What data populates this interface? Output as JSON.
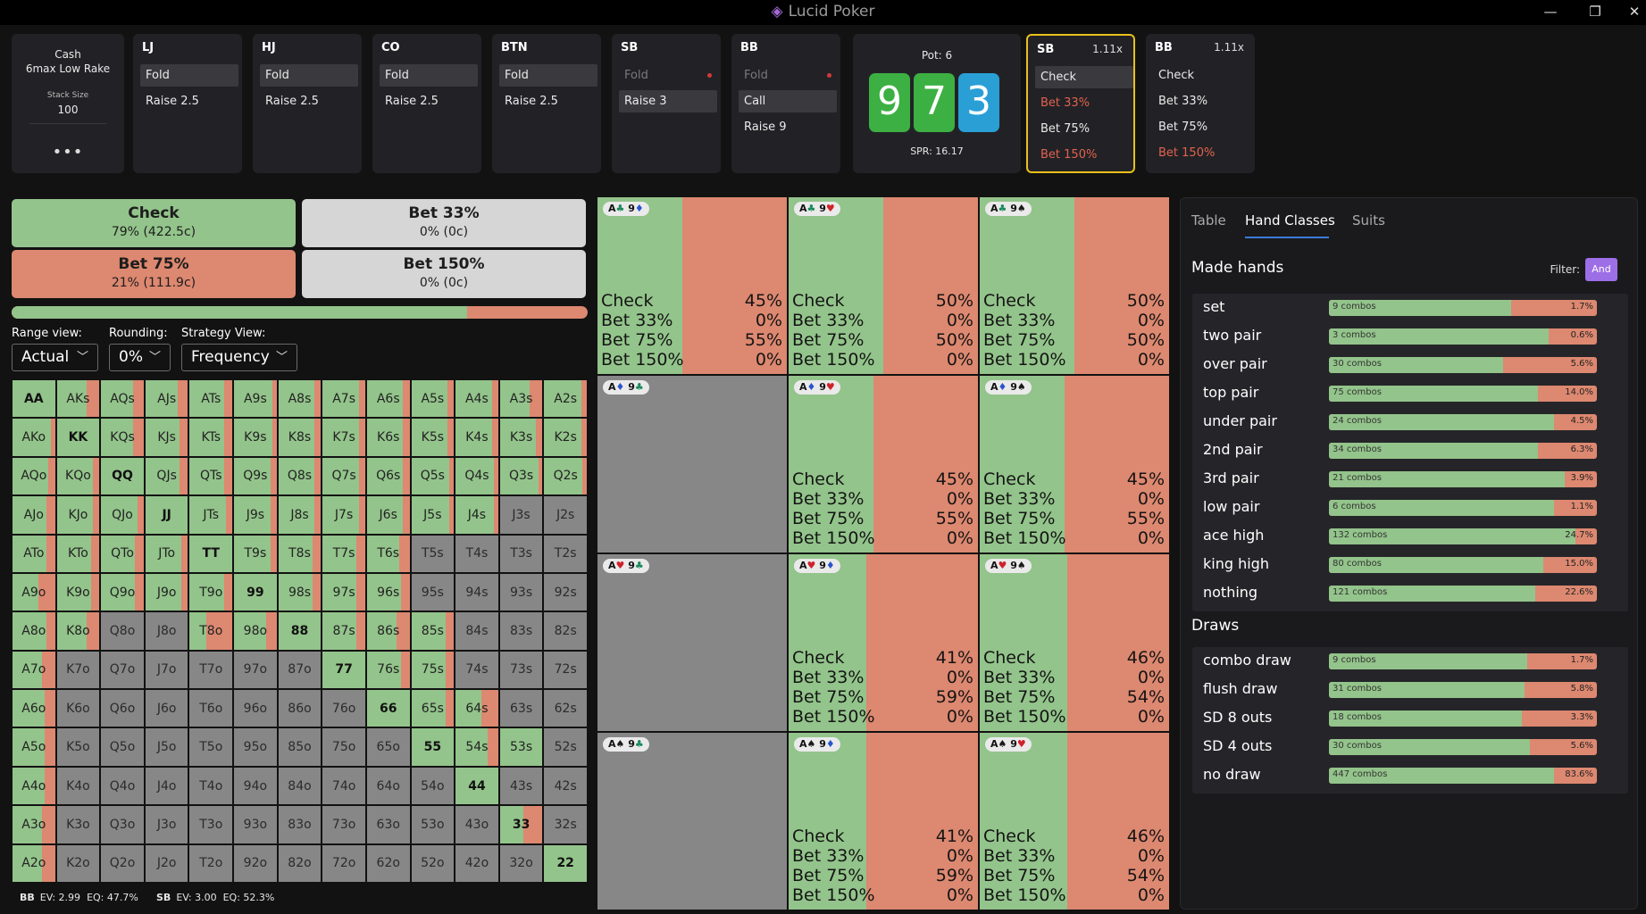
{
  "app": {
    "title": "Lucid Poker"
  },
  "game_info": {
    "line1": "Cash",
    "line2": "6max Low Rake",
    "stack_label": "Stack Size",
    "stack_value": "100",
    "more": "•••"
  },
  "positions": [
    {
      "name": "LJ",
      "actions": [
        {
          "label": "Fold",
          "selected": true
        },
        {
          "label": "Raise 2.5"
        }
      ]
    },
    {
      "name": "HJ",
      "actions": [
        {
          "label": "Fold",
          "selected": true
        },
        {
          "label": "Raise 2.5"
        }
      ]
    },
    {
      "name": "CO",
      "actions": [
        {
          "label": "Fold",
          "selected": true
        },
        {
          "label": "Raise 2.5"
        }
      ]
    },
    {
      "name": "BTN",
      "actions": [
        {
          "label": "Fold",
          "selected": true
        },
        {
          "label": "Raise 2.5"
        }
      ]
    },
    {
      "name": "SB",
      "actions": [
        {
          "label": "Fold",
          "dim": true,
          "dot": true
        },
        {
          "label": "Raise 3",
          "selected": true
        }
      ]
    },
    {
      "name": "BB",
      "actions": [
        {
          "label": "Fold",
          "dim": true,
          "dot": true
        },
        {
          "label": "Call",
          "selected": true
        },
        {
          "label": "Raise 9"
        }
      ]
    }
  ],
  "pot": {
    "label": "Pot: 6",
    "spr": "SPR: 16.17",
    "board": [
      {
        "rank": "9",
        "color": "#3cb043"
      },
      {
        "rank": "7",
        "color": "#3cb043"
      },
      {
        "rank": "3",
        "color": "#2a9fd6"
      }
    ]
  },
  "sb_card": {
    "name": "SB",
    "mult": "1.11x",
    "actions": [
      {
        "label": "Check",
        "selected": true
      },
      {
        "label": "Bet 33%",
        "red": true
      },
      {
        "label": "Bet 75%"
      },
      {
        "label": "Bet 150%",
        "red": true
      }
    ]
  },
  "bb_card": {
    "name": "BB",
    "mult": "1.11x",
    "actions": [
      {
        "label": "Check"
      },
      {
        "label": "Bet 33%"
      },
      {
        "label": "Bet 75%"
      },
      {
        "label": "Bet 150%",
        "red": true
      }
    ]
  },
  "strategy_actions": [
    {
      "name": "Check",
      "stat": "79% (422.5c)",
      "color": "#93c48b"
    },
    {
      "name": "Bet 33%",
      "stat": "0% (0c)",
      "color": "#d6d6d6"
    },
    {
      "name": "Bet 75%",
      "stat": "21% (111.9c)",
      "color": "#dd8870"
    },
    {
      "name": "Bet 150%",
      "stat": "0% (0c)",
      "color": "#d6d6d6"
    }
  ],
  "freq_bar": {
    "check_fraction": 0.79
  },
  "controls": {
    "range_view_label": "Range view:",
    "range_view_value": "Actual",
    "rounding_label": "Rounding:",
    "rounding_value": "0%",
    "strategy_view_label": "Strategy View:",
    "strategy_view_value": "Frequency"
  },
  "hand_grid": {
    "rows": [
      [
        "AA",
        "AKs",
        "AQs",
        "AJs",
        "ATs",
        "A9s",
        "A8s",
        "A7s",
        "A6s",
        "A5s",
        "A4s",
        "A3s",
        "A2s"
      ],
      [
        "AKo",
        "KK",
        "KQs",
        "KJs",
        "KTs",
        "K9s",
        "K8s",
        "K7s",
        "K6s",
        "K5s",
        "K4s",
        "K3s",
        "K2s"
      ],
      [
        "AQo",
        "KQo",
        "QQ",
        "QJs",
        "QTs",
        "Q9s",
        "Q8s",
        "Q7s",
        "Q6s",
        "Q5s",
        "Q4s",
        "Q3s",
        "Q2s"
      ],
      [
        "AJo",
        "KJo",
        "QJo",
        "JJ",
        "JTs",
        "J9s",
        "J8s",
        "J7s",
        "J6s",
        "J5s",
        "J4s",
        "J3s",
        "J2s"
      ],
      [
        "ATo",
        "KTo",
        "QTo",
        "JTo",
        "TT",
        "T9s",
        "T8s",
        "T7s",
        "T6s",
        "T5s",
        "T4s",
        "T3s",
        "T2s"
      ],
      [
        "A9o",
        "K9o",
        "Q9o",
        "J9o",
        "T9o",
        "99",
        "98s",
        "97s",
        "96s",
        "95s",
        "94s",
        "93s",
        "92s"
      ],
      [
        "A8o",
        "K8o",
        "Q8o",
        "J8o",
        "T8o",
        "98o",
        "88",
        "87s",
        "86s",
        "85s",
        "84s",
        "83s",
        "82s"
      ],
      [
        "A7o",
        "K7o",
        "Q7o",
        "J7o",
        "T7o",
        "97o",
        "87o",
        "77",
        "76s",
        "75s",
        "74s",
        "73s",
        "72s"
      ],
      [
        "A6o",
        "K6o",
        "Q6o",
        "J6o",
        "T6o",
        "96o",
        "86o",
        "76o",
        "66",
        "65s",
        "64s",
        "63s",
        "62s"
      ],
      [
        "A5o",
        "K5o",
        "Q5o",
        "J5o",
        "T5o",
        "95o",
        "85o",
        "75o",
        "65o",
        "55",
        "54s",
        "53s",
        "52s"
      ],
      [
        "A4o",
        "K4o",
        "Q4o",
        "J4o",
        "T4o",
        "94o",
        "84o",
        "74o",
        "64o",
        "54o",
        "44",
        "43s",
        "42s"
      ],
      [
        "A3o",
        "K3o",
        "Q3o",
        "J3o",
        "T3o",
        "93o",
        "83o",
        "73o",
        "63o",
        "53o",
        "43o",
        "33",
        "32s"
      ],
      [
        "A2o",
        "K2o",
        "Q2o",
        "J2o",
        "T2o",
        "92o",
        "82o",
        "72o",
        "62o",
        "52o",
        "42o",
        "32o",
        "22"
      ]
    ],
    "freq": [
      [
        1,
        0.7,
        0.75,
        0.75,
        0.8,
        0.9,
        0.85,
        0.85,
        0.85,
        0.85,
        0.85,
        0.7,
        0.88
      ],
      [
        0.9,
        1,
        0.75,
        0.8,
        0.8,
        0.9,
        0.85,
        0.85,
        0.85,
        0.85,
        0.85,
        0.85,
        0.88
      ],
      [
        0.85,
        0.85,
        1,
        0.8,
        0.8,
        0.85,
        0.85,
        0.85,
        0.85,
        0.9,
        0.9,
        0.9,
        0.9
      ],
      [
        0.8,
        0.85,
        0.85,
        1,
        0.85,
        0.85,
        0.85,
        0.85,
        0.85,
        0.9,
        0.9,
        null,
        null
      ],
      [
        0.8,
        0.8,
        0.8,
        0.85,
        1,
        0.85,
        0.8,
        0.8,
        0.75,
        null,
        null,
        null,
        null
      ],
      [
        0.6,
        0.8,
        0.8,
        0.85,
        0.8,
        1,
        0.8,
        0.8,
        0.8,
        null,
        null,
        null,
        null
      ],
      [
        0.8,
        0.7,
        null,
        null,
        0.4,
        0.75,
        1,
        0.8,
        0.7,
        0.8,
        null,
        null,
        null
      ],
      [
        0.7,
        null,
        null,
        null,
        null,
        null,
        null,
        1,
        0.8,
        0.8,
        null,
        null,
        null
      ],
      [
        0.75,
        null,
        null,
        null,
        null,
        null,
        null,
        null,
        1,
        0.8,
        0.6,
        null,
        null
      ],
      [
        0.75,
        null,
        null,
        null,
        null,
        null,
        null,
        null,
        null,
        1,
        0.75,
        1,
        null
      ],
      [
        0.75,
        null,
        null,
        null,
        null,
        null,
        null,
        null,
        null,
        null,
        1,
        null,
        null
      ],
      [
        0.7,
        null,
        null,
        null,
        null,
        null,
        null,
        null,
        null,
        null,
        null,
        0.55,
        null
      ],
      [
        0.7,
        null,
        null,
        null,
        null,
        null,
        null,
        null,
        null,
        null,
        null,
        null,
        1
      ]
    ],
    "highlight": "A9o"
  },
  "ev": [
    {
      "pos": "BB",
      "ev": "EV: 2.99",
      "eq": "EQ: 47.7%"
    },
    {
      "pos": "SB",
      "ev": "EV: 3.00",
      "eq": "EQ: 52.3%"
    }
  ],
  "combos": [
    {
      "card1": {
        "r": "A",
        "s": "♣",
        "c": "cl"
      },
      "card2": {
        "r": "9",
        "s": "♦",
        "c": "dm"
      },
      "check": 0.45,
      "lines": [
        [
          "Check",
          "45%"
        ],
        [
          "Bet 33%",
          "0%"
        ],
        [
          "Bet 75%",
          "55%"
        ],
        [
          "Bet 150%",
          "0%"
        ]
      ]
    },
    {
      "card1": {
        "r": "A",
        "s": "♣",
        "c": "cl"
      },
      "card2": {
        "r": "9",
        "s": "♥",
        "c": "ht"
      },
      "check": 0.5,
      "lines": [
        [
          "Check",
          "50%"
        ],
        [
          "Bet 33%",
          "0%"
        ],
        [
          "Bet 75%",
          "50%"
        ],
        [
          "Bet 150%",
          "0%"
        ]
      ]
    },
    {
      "card1": {
        "r": "A",
        "s": "♣",
        "c": "cl"
      },
      "card2": {
        "r": "9",
        "s": "♠",
        "c": "sp"
      },
      "check": 0.5,
      "lines": [
        [
          "Check",
          "50%"
        ],
        [
          "Bet 33%",
          "0%"
        ],
        [
          "Bet 75%",
          "50%"
        ],
        [
          "Bet 150%",
          "0%"
        ]
      ]
    },
    {
      "card1": {
        "r": "A",
        "s": "♦",
        "c": "dm"
      },
      "card2": {
        "r": "9",
        "s": "♣",
        "c": "cl"
      },
      "grey": true,
      "lines": []
    },
    {
      "card1": {
        "r": "A",
        "s": "♦",
        "c": "dm"
      },
      "card2": {
        "r": "9",
        "s": "♥",
        "c": "ht"
      },
      "check": 0.45,
      "lines": [
        [
          "Check",
          "45%"
        ],
        [
          "Bet 33%",
          "0%"
        ],
        [
          "Bet 75%",
          "55%"
        ],
        [
          "Bet 150%",
          "0%"
        ]
      ]
    },
    {
      "card1": {
        "r": "A",
        "s": "♦",
        "c": "dm"
      },
      "card2": {
        "r": "9",
        "s": "♠",
        "c": "sp"
      },
      "check": 0.45,
      "lines": [
        [
          "Check",
          "45%"
        ],
        [
          "Bet 33%",
          "0%"
        ],
        [
          "Bet 75%",
          "55%"
        ],
        [
          "Bet 150%",
          "0%"
        ]
      ]
    },
    {
      "card1": {
        "r": "A",
        "s": "♥",
        "c": "ht"
      },
      "card2": {
        "r": "9",
        "s": "♣",
        "c": "cl"
      },
      "grey": true,
      "lines": []
    },
    {
      "card1": {
        "r": "A",
        "s": "♥",
        "c": "ht"
      },
      "card2": {
        "r": "9",
        "s": "♦",
        "c": "dm"
      },
      "check": 0.41,
      "lines": [
        [
          "Check",
          "41%"
        ],
        [
          "Bet 33%",
          "0%"
        ],
        [
          "Bet 75%",
          "59%"
        ],
        [
          "Bet 150%",
          "0%"
        ]
      ]
    },
    {
      "card1": {
        "r": "A",
        "s": "♥",
        "c": "ht"
      },
      "card2": {
        "r": "9",
        "s": "♠",
        "c": "sp"
      },
      "check": 0.46,
      "lines": [
        [
          "Check",
          "46%"
        ],
        [
          "Bet 33%",
          "0%"
        ],
        [
          "Bet 75%",
          "54%"
        ],
        [
          "Bet 150%",
          "0%"
        ]
      ]
    },
    {
      "card1": {
        "r": "A",
        "s": "♠",
        "c": "sp"
      },
      "card2": {
        "r": "9",
        "s": "♣",
        "c": "cl"
      },
      "grey": true,
      "lines": []
    },
    {
      "card1": {
        "r": "A",
        "s": "♠",
        "c": "sp"
      },
      "card2": {
        "r": "9",
        "s": "♦",
        "c": "dm"
      },
      "check": 0.41,
      "lines": [
        [
          "Check",
          "41%"
        ],
        [
          "Bet 33%",
          "0%"
        ],
        [
          "Bet 75%",
          "59%"
        ],
        [
          "Bet 150%",
          "0%"
        ]
      ]
    },
    {
      "card1": {
        "r": "A",
        "s": "♠",
        "c": "sp"
      },
      "card2": {
        "r": "9",
        "s": "♥",
        "c": "ht"
      },
      "check": 0.46,
      "lines": [
        [
          "Check",
          "46%"
        ],
        [
          "Bet 33%",
          "0%"
        ],
        [
          "Bet 75%",
          "54%"
        ],
        [
          "Bet 150%",
          "0%"
        ]
      ]
    }
  ],
  "right_panel": {
    "tabs": [
      "Table",
      "Hand Classes",
      "Suits"
    ],
    "active_tab": 1,
    "made_title": "Made hands",
    "filter_label": "Filter:",
    "filter_value": "And",
    "made_hands": [
      {
        "name": "set",
        "combos": "9 combos",
        "pct": "1.7%",
        "check": 0.68
      },
      {
        "name": "two pair",
        "combos": "3 combos",
        "pct": "0.6%",
        "check": 0.82
      },
      {
        "name": "over pair",
        "combos": "30 combos",
        "pct": "5.6%",
        "check": 0.65
      },
      {
        "name": "top pair",
        "combos": "75 combos",
        "pct": "14.0%",
        "check": 0.78
      },
      {
        "name": "under pair",
        "combos": "24 combos",
        "pct": "4.5%",
        "check": 0.84
      },
      {
        "name": "2nd pair",
        "combos": "34 combos",
        "pct": "6.3%",
        "check": 0.78
      },
      {
        "name": "3rd pair",
        "combos": "21 combos",
        "pct": "3.9%",
        "check": 0.88
      },
      {
        "name": "low pair",
        "combos": "6 combos",
        "pct": "1.1%",
        "check": 0.84
      },
      {
        "name": "ace high",
        "combos": "132 combos",
        "pct": "24.7%",
        "check": 0.92
      },
      {
        "name": "king high",
        "combos": "80 combos",
        "pct": "15.0%",
        "check": 0.8
      },
      {
        "name": "nothing",
        "combos": "121 combos",
        "pct": "22.6%",
        "check": 0.77
      }
    ],
    "draws_title": "Draws",
    "draws": [
      {
        "name": "combo draw",
        "combos": "9 combos",
        "pct": "1.7%",
        "check": 0.74
      },
      {
        "name": "flush draw",
        "combos": "31 combos",
        "pct": "5.8%",
        "check": 0.73
      },
      {
        "name": "SD 8 outs",
        "combos": "18 combos",
        "pct": "3.3%",
        "check": 0.72
      },
      {
        "name": "SD 4 outs",
        "combos": "30 combos",
        "pct": "5.6%",
        "check": 0.75
      },
      {
        "name": "no draw",
        "combos": "447 combos",
        "pct": "83.6%",
        "check": 0.84
      }
    ]
  },
  "colors": {
    "check": "#93c48b",
    "bet": "#dd8870",
    "neutral": "#d6d6d6",
    "grey": "#878787",
    "accent": "#e9c11c",
    "filter": "#9d6fe6"
  },
  "icons": {
    "minimize": "minimize-icon",
    "maximize": "maximize-icon",
    "close": "close-icon",
    "logo": "diamond-logo-icon",
    "chevron": "chevron-down-icon"
  }
}
